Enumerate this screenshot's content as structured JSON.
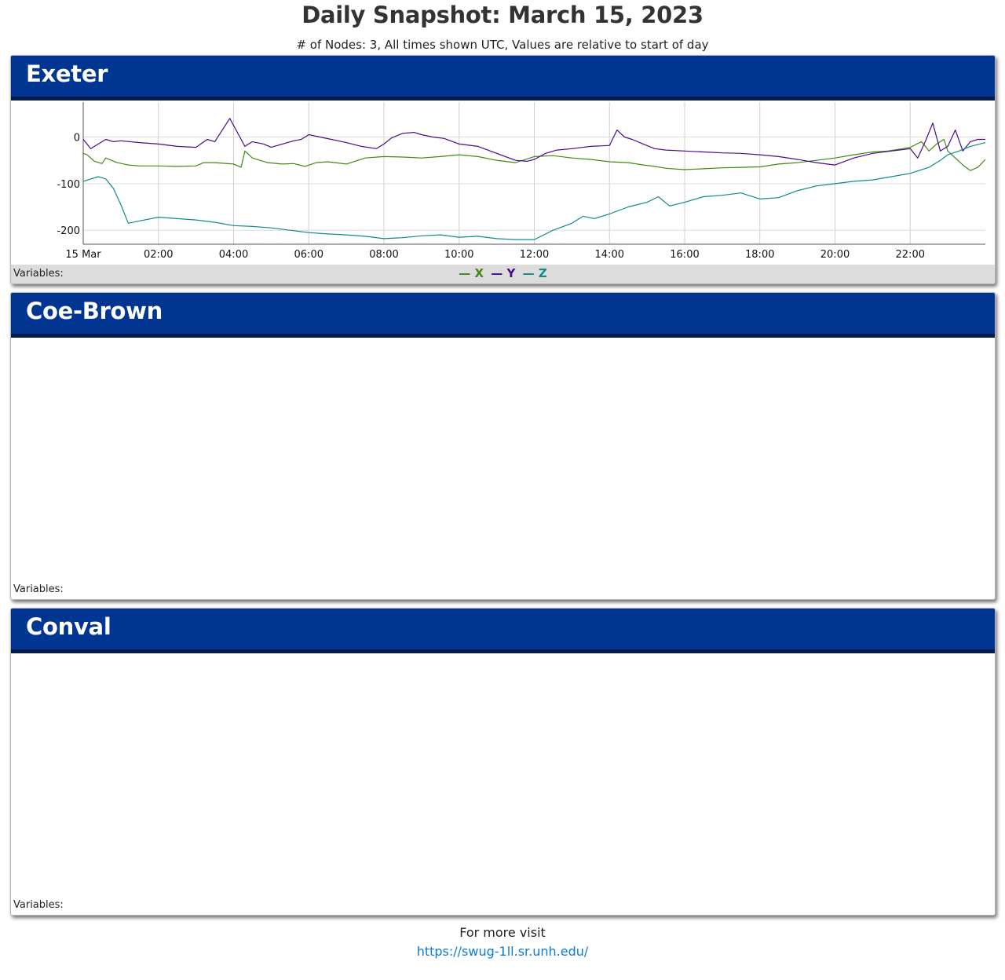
{
  "page": {
    "title": "Daily Snapshot: March 15, 2023",
    "subtitle": "# of Nodes: 3, All times shown UTC, Values are relative to start of day"
  },
  "panels": [
    {
      "name": "Exeter",
      "variables_label": "Variables:",
      "legend": [
        {
          "symbol": "—",
          "name": "X",
          "color": "#3f8a12"
        },
        {
          "symbol": "—",
          "name": "Y",
          "color": "#4b0a8c"
        },
        {
          "symbol": "—",
          "name": "Z",
          "color": "#0f8a8a"
        }
      ]
    },
    {
      "name": "Coe-Brown",
      "variables_label": "Variables:"
    },
    {
      "name": "Conval",
      "variables_label": "Variables:"
    }
  ],
  "chart_data": {
    "type": "line",
    "title": "",
    "xlabel": "",
    "ylabel": "",
    "x_unit": "hours UTC",
    "xlim": [
      0,
      24
    ],
    "ylim": [
      -230,
      75
    ],
    "x_tick_labels": [
      "15 Mar",
      "02:00",
      "04:00",
      "06:00",
      "08:00",
      "10:00",
      "12:00",
      "14:00",
      "16:00",
      "18:00",
      "20:00",
      "22:00"
    ],
    "x_ticks": [
      0,
      2,
      4,
      6,
      8,
      10,
      12,
      14,
      16,
      18,
      20,
      22
    ],
    "y_ticks": [
      0,
      -100,
      -200
    ],
    "y_tick_labels": [
      "0",
      "-100",
      "-200"
    ],
    "grid": true,
    "legend_placement": "bottom-center",
    "series": [
      {
        "name": "X",
        "color": "#3f8a12",
        "x": [
          0.0,
          0.1,
          0.3,
          0.5,
          0.6,
          0.9,
          1.2,
          1.5,
          2.0,
          2.5,
          3.0,
          3.2,
          3.5,
          4.0,
          4.2,
          4.3,
          4.5,
          4.9,
          5.3,
          5.6,
          5.9,
          6.2,
          6.5,
          7.0,
          7.5,
          8.0,
          8.5,
          9.0,
          9.5,
          10.0,
          10.5,
          11.0,
          11.5,
          12.0,
          12.5,
          13.0,
          13.5,
          14.0,
          14.5,
          14.9,
          15.2,
          15.5,
          16.0,
          16.5,
          17.0,
          17.5,
          18.0,
          18.5,
          19.0,
          19.5,
          20.0,
          20.5,
          21.0,
          21.4,
          21.8,
          22.0,
          22.3,
          22.5,
          22.7,
          22.9,
          23.0,
          23.2,
          23.4,
          23.6,
          23.8,
          24.0
        ],
        "y": [
          -35,
          -38,
          -52,
          -57,
          -45,
          -55,
          -60,
          -62,
          -62,
          -63,
          -62,
          -55,
          -55,
          -58,
          -65,
          -30,
          -45,
          -55,
          -58,
          -57,
          -63,
          -55,
          -53,
          -58,
          -45,
          -42,
          -43,
          -45,
          -42,
          -38,
          -42,
          -50,
          -55,
          -42,
          -40,
          -45,
          -48,
          -53,
          -55,
          -60,
          -63,
          -67,
          -70,
          -68,
          -66,
          -65,
          -64,
          -58,
          -55,
          -50,
          -45,
          -38,
          -32,
          -30,
          -25,
          -22,
          -10,
          -30,
          -15,
          -5,
          -30,
          -45,
          -60,
          -72,
          -65,
          -48
        ]
      },
      {
        "name": "Y",
        "color": "#4b0a8c",
        "x": [
          0.0,
          0.1,
          0.2,
          0.4,
          0.6,
          0.8,
          1.0,
          1.5,
          2.0,
          2.5,
          3.0,
          3.3,
          3.5,
          3.7,
          3.9,
          4.1,
          4.3,
          4.5,
          4.8,
          5.0,
          5.3,
          5.6,
          5.8,
          6.0,
          6.3,
          6.6,
          7.0,
          7.4,
          7.8,
          8.0,
          8.2,
          8.5,
          8.8,
          9.0,
          9.3,
          9.6,
          10.0,
          10.5,
          11.0,
          11.5,
          11.8,
          12.0,
          12.3,
          12.6,
          13.0,
          13.5,
          14.0,
          14.2,
          14.4,
          14.6,
          14.9,
          15.2,
          15.5,
          16.0,
          16.5,
          17.0,
          17.5,
          18.0,
          18.5,
          19.0,
          19.5,
          20.0,
          20.5,
          21.0,
          21.5,
          22.0,
          22.2,
          22.4,
          22.6,
          22.8,
          23.0,
          23.2,
          23.4,
          23.6,
          23.8,
          24.0
        ],
        "y": [
          -5,
          -15,
          -25,
          -15,
          -5,
          -10,
          -8,
          -12,
          -15,
          -20,
          -22,
          -5,
          -10,
          15,
          40,
          10,
          -20,
          -10,
          -15,
          -22,
          -15,
          -8,
          -5,
          5,
          0,
          -5,
          -12,
          -20,
          -25,
          -15,
          -2,
          8,
          10,
          5,
          0,
          -3,
          -15,
          -20,
          -35,
          -50,
          -52,
          -48,
          -35,
          -28,
          -25,
          -20,
          -18,
          15,
          0,
          -5,
          -15,
          -25,
          -28,
          -30,
          -32,
          -34,
          -35,
          -38,
          -42,
          -48,
          -55,
          -60,
          -45,
          -35,
          -30,
          -25,
          -45,
          -10,
          30,
          -30,
          -20,
          15,
          -30,
          -10,
          -5,
          -5
        ]
      },
      {
        "name": "Z",
        "color": "#0f8a8a",
        "x": [
          0.0,
          0.2,
          0.4,
          0.6,
          0.8,
          1.0,
          1.2,
          1.5,
          2.0,
          2.5,
          3.0,
          3.5,
          4.0,
          4.5,
          5.0,
          5.5,
          6.0,
          6.5,
          7.0,
          7.5,
          8.0,
          8.5,
          9.0,
          9.5,
          10.0,
          10.5,
          11.0,
          11.5,
          12.0,
          12.5,
          13.0,
          13.3,
          13.6,
          14.0,
          14.5,
          15.0,
          15.3,
          15.6,
          16.0,
          16.5,
          17.0,
          17.5,
          18.0,
          18.5,
          19.0,
          19.5,
          20.0,
          20.5,
          21.0,
          21.5,
          22.0,
          22.5,
          22.8,
          23.0,
          23.3,
          23.6,
          24.0
        ],
        "y": [
          -95,
          -90,
          -85,
          -90,
          -110,
          -145,
          -185,
          -180,
          -172,
          -175,
          -178,
          -183,
          -190,
          -192,
          -195,
          -200,
          -205,
          -208,
          -210,
          -213,
          -218,
          -216,
          -212,
          -210,
          -215,
          -213,
          -218,
          -220,
          -220,
          -200,
          -185,
          -170,
          -175,
          -165,
          -150,
          -140,
          -128,
          -148,
          -140,
          -128,
          -125,
          -120,
          -133,
          -130,
          -115,
          -105,
          -100,
          -95,
          -92,
          -85,
          -78,
          -65,
          -50,
          -38,
          -30,
          -20,
          -12
        ]
      }
    ]
  },
  "footer": {
    "text": "For more visit",
    "link": "https://swug-1ll.sr.unh.edu/"
  }
}
